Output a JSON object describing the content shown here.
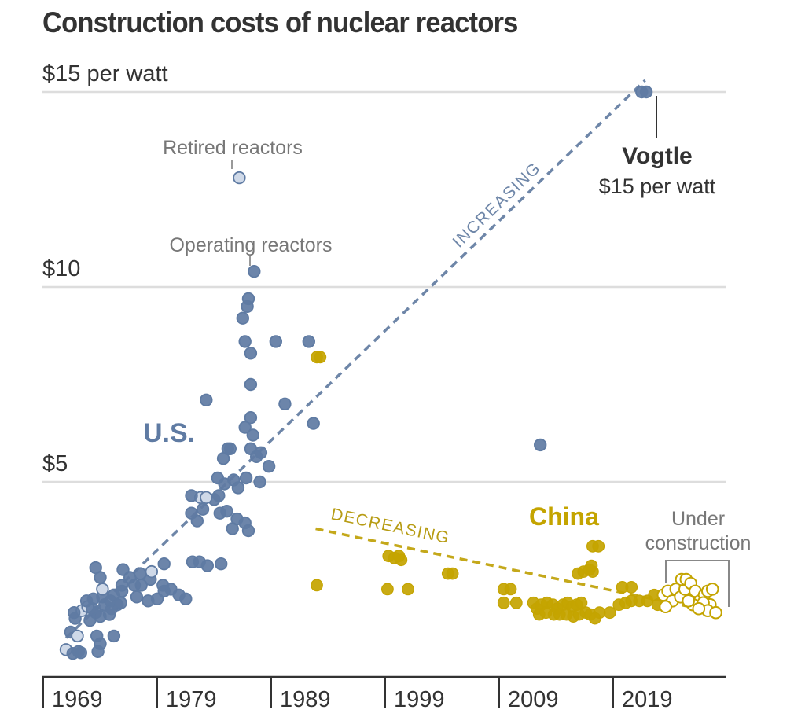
{
  "chart_data": {
    "type": "scatter",
    "title": "Construction costs of nuclear reactors",
    "xlabel": "",
    "ylabel": "$ per watt",
    "xlim": [
      1969,
      2029
    ],
    "ylim": [
      0,
      15
    ],
    "grid": true,
    "x_ticks": [
      "1969",
      "1979",
      "1989",
      "1999",
      "2009",
      "2019"
    ],
    "x_tick_values": [
      1969,
      1979,
      1989,
      1999,
      2009,
      2019
    ],
    "y_ticks": [
      {
        "value": 15,
        "label": "$15 per watt"
      },
      {
        "value": 10,
        "label": "$10"
      },
      {
        "value": 5,
        "label": "$5"
      }
    ],
    "colors": {
      "us": "#5f7ba3",
      "us_retired_fill": "#cfd9e8",
      "china": "#c4a400",
      "china_uc_fill": "#ffffff",
      "trend_us": "#6e86a8",
      "trend_china": "#c4a81a",
      "grid": "#dddddd",
      "text": "#333333",
      "annotation": "#777777"
    },
    "series": [
      {
        "name": "U.S.",
        "status_legend": {
          "op": "Operating reactors",
          "ret": "Retired reactors"
        },
        "points": [
          [
            1971.0,
            0.7,
            "ret"
          ],
          [
            1971.6,
            0.6,
            "op"
          ],
          [
            1972.1,
            0.65,
            "op"
          ],
          [
            1972.3,
            0.62,
            "op"
          ],
          [
            1973.8,
            0.65,
            "op"
          ],
          [
            1974.0,
            0.85,
            "op"
          ],
          [
            1971.4,
            1.15,
            "op"
          ],
          [
            1972.0,
            1.05,
            "ret"
          ],
          [
            1973.7,
            1.05,
            "op"
          ],
          [
            1975.2,
            1.05,
            "op"
          ],
          [
            1971.8,
            1.5,
            "op"
          ],
          [
            1972.4,
            1.7,
            "ret"
          ],
          [
            1973.1,
            1.45,
            "op"
          ],
          [
            1973.6,
            1.65,
            "op"
          ],
          [
            1974.0,
            1.55,
            "op"
          ],
          [
            1974.8,
            1.6,
            "op"
          ],
          [
            1971.7,
            1.65,
            "op"
          ],
          [
            1972.9,
            1.8,
            "ret"
          ],
          [
            1973.3,
            1.75,
            "op"
          ],
          [
            1974.4,
            1.85,
            "op"
          ],
          [
            1975.0,
            1.75,
            "op"
          ],
          [
            1975.5,
            1.85,
            "op"
          ],
          [
            1972.8,
            1.95,
            "op"
          ],
          [
            1973.4,
            2.0,
            "op"
          ],
          [
            1974.2,
            2.05,
            "op"
          ],
          [
            1974.9,
            1.95,
            "op"
          ],
          [
            1975.8,
            1.9,
            "op"
          ],
          [
            1974.2,
            2.25,
            "ret"
          ],
          [
            1975.2,
            2.1,
            "op"
          ],
          [
            1975.9,
            2.2,
            "op"
          ],
          [
            1977.2,
            2.05,
            "op"
          ],
          [
            1978.2,
            1.95,
            "op"
          ],
          [
            1975.9,
            2.35,
            "op"
          ],
          [
            1977.0,
            2.35,
            "op"
          ],
          [
            1979.0,
            2.0,
            "op"
          ],
          [
            1979.6,
            2.2,
            "op"
          ],
          [
            1980.2,
            2.25,
            "op"
          ],
          [
            1976.6,
            2.55,
            "op"
          ],
          [
            1977.6,
            2.35,
            "op"
          ],
          [
            1978.4,
            2.5,
            "op"
          ],
          [
            1979.5,
            2.35,
            "op"
          ],
          [
            1980.9,
            2.1,
            "op"
          ],
          [
            1981.5,
            2.0,
            "op"
          ],
          [
            1976.0,
            2.75,
            "op"
          ],
          [
            1977.5,
            2.65,
            "op"
          ],
          [
            1978.5,
            2.7,
            "ret"
          ],
          [
            1979.6,
            2.9,
            "op"
          ],
          [
            1982.1,
            2.95,
            "op"
          ],
          [
            1982.7,
            2.95,
            "op"
          ],
          [
            1983.4,
            2.85,
            "op"
          ],
          [
            1984.6,
            2.9,
            "op"
          ],
          [
            1973.6,
            2.8,
            "op"
          ],
          [
            1974.0,
            2.55,
            "op"
          ],
          [
            1982.5,
            4.0,
            "op"
          ],
          [
            1982.0,
            4.2,
            "op"
          ],
          [
            1983.0,
            4.3,
            "op"
          ],
          [
            1984.5,
            4.2,
            "op"
          ],
          [
            1985.6,
            3.8,
            "op"
          ],
          [
            1986.0,
            4.05,
            "op"
          ],
          [
            1986.7,
            3.95,
            "op"
          ],
          [
            1987.0,
            3.75,
            "op"
          ],
          [
            1984.0,
            4.55,
            "op"
          ],
          [
            1984.4,
            4.65,
            "op"
          ],
          [
            1982.8,
            4.6,
            "ret"
          ],
          [
            1983.3,
            4.6,
            "ret"
          ],
          [
            1982.0,
            4.65,
            "op"
          ],
          [
            1985.1,
            4.25,
            "op"
          ],
          [
            1984.3,
            5.1,
            "op"
          ],
          [
            1984.9,
            4.95,
            "op"
          ],
          [
            1985.7,
            5.05,
            "op"
          ],
          [
            1986.1,
            4.85,
            "op"
          ],
          [
            1984.8,
            5.6,
            "op"
          ],
          [
            1985.2,
            5.85,
            "op"
          ],
          [
            1985.4,
            5.85,
            "op"
          ],
          [
            1986.8,
            5.1,
            "op"
          ],
          [
            1988.0,
            5.0,
            "op"
          ],
          [
            1987.2,
            5.85,
            "op"
          ],
          [
            1987.7,
            5.65,
            "op"
          ],
          [
            1988.1,
            5.75,
            "op"
          ],
          [
            1988.8,
            5.4,
            "op"
          ],
          [
            1986.7,
            6.4,
            "op"
          ],
          [
            1987.2,
            6.65,
            "op"
          ],
          [
            1987.4,
            6.2,
            "op"
          ],
          [
            1983.3,
            7.1,
            "op"
          ],
          [
            1990.2,
            7.0,
            "op"
          ],
          [
            1992.7,
            6.5,
            "op"
          ],
          [
            1987.2,
            7.5,
            "op"
          ],
          [
            1986.7,
            8.6,
            "op"
          ],
          [
            1987.2,
            8.3,
            "op"
          ],
          [
            1986.5,
            9.2,
            "op"
          ],
          [
            1986.9,
            9.5,
            "op"
          ],
          [
            1987.0,
            9.7,
            "op"
          ],
          [
            1987.5,
            10.4,
            "op"
          ],
          [
            1989.4,
            8.6,
            "op"
          ],
          [
            1992.3,
            8.6,
            "op"
          ],
          [
            2012.6,
            5.95,
            "op"
          ],
          [
            1986.2,
            12.8,
            "ret"
          ],
          [
            2021.5,
            15.0,
            "op"
          ],
          [
            2021.9,
            15.0,
            "op"
          ]
        ]
      },
      {
        "name": "China",
        "status_legend": {
          "op": "Operating reactors",
          "uc": "Under construction"
        },
        "points": [
          [
            1993.0,
            8.2,
            "op"
          ],
          [
            1993.3,
            8.2,
            "op"
          ],
          [
            1993.0,
            2.35,
            "op"
          ],
          [
            1999.3,
            3.1,
            "op"
          ],
          [
            1999.8,
            3.05,
            "op"
          ],
          [
            2000.4,
            3.0,
            "op"
          ],
          [
            2000.2,
            3.1,
            "op"
          ],
          [
            2001.0,
            2.25,
            "op"
          ],
          [
            1999.2,
            2.25,
            "op"
          ],
          [
            2004.5,
            2.65,
            "op"
          ],
          [
            2004.9,
            2.65,
            "op"
          ],
          [
            2009.4,
            2.25,
            "op"
          ],
          [
            2010.0,
            2.25,
            "op"
          ],
          [
            2009.4,
            1.9,
            "op"
          ],
          [
            2010.5,
            1.9,
            "op"
          ],
          [
            2012.0,
            1.9,
            "op"
          ],
          [
            2012.3,
            1.75,
            "op"
          ],
          [
            2012.7,
            1.85,
            "op"
          ],
          [
            2013.2,
            1.9,
            "op"
          ],
          [
            2013.7,
            1.85,
            "op"
          ],
          [
            2014.1,
            1.75,
            "op"
          ],
          [
            2014.6,
            1.85,
            "op"
          ],
          [
            2015.0,
            1.9,
            "op"
          ],
          [
            2015.4,
            1.8,
            "op"
          ],
          [
            2015.8,
            1.85,
            "op"
          ],
          [
            2016.2,
            1.9,
            "op"
          ],
          [
            2012.5,
            1.6,
            "op"
          ],
          [
            2013.1,
            1.65,
            "op"
          ],
          [
            2013.8,
            1.6,
            "op"
          ],
          [
            2014.3,
            1.6,
            "op"
          ],
          [
            2014.9,
            1.6,
            "op"
          ],
          [
            2015.5,
            1.55,
            "op"
          ],
          [
            2016.0,
            1.6,
            "op"
          ],
          [
            2016.6,
            1.65,
            "op"
          ],
          [
            2017.0,
            1.6,
            "op"
          ],
          [
            2017.8,
            1.65,
            "op"
          ],
          [
            2018.7,
            1.65,
            "op"
          ],
          [
            2017.4,
            1.5,
            "op"
          ],
          [
            2015.9,
            2.65,
            "op"
          ],
          [
            2016.4,
            2.7,
            "op"
          ],
          [
            2016.9,
            2.75,
            "op"
          ],
          [
            2017.2,
            2.7,
            "op"
          ],
          [
            2017.1,
            2.85,
            "op"
          ],
          [
            2017.2,
            3.35,
            "op"
          ],
          [
            2017.7,
            3.35,
            "op"
          ],
          [
            2019.8,
            2.3,
            "op"
          ],
          [
            2020.6,
            2.3,
            "op"
          ],
          [
            2019.5,
            1.85,
            "op"
          ],
          [
            2020.1,
            1.9,
            "op"
          ],
          [
            2020.6,
            1.95,
            "op"
          ],
          [
            2021.3,
            1.95,
            "op"
          ],
          [
            2022.0,
            1.95,
            "op"
          ],
          [
            2022.6,
            2.1,
            "op"
          ],
          [
            2022.9,
            1.85,
            "op"
          ],
          [
            2023.4,
            2.1,
            "uc"
          ],
          [
            2023.8,
            2.2,
            "uc"
          ],
          [
            2024.2,
            1.95,
            "uc"
          ],
          [
            2024.5,
            2.25,
            "uc"
          ],
          [
            2024.9,
            2.05,
            "uc"
          ],
          [
            2025.3,
            2.25,
            "uc"
          ],
          [
            2025.0,
            2.5,
            "uc"
          ],
          [
            2025.4,
            2.5,
            "uc"
          ],
          [
            2025.8,
            2.4,
            "uc"
          ],
          [
            2026.2,
            2.2,
            "uc"
          ],
          [
            2026.6,
            1.95,
            "uc"
          ],
          [
            2027.0,
            2.1,
            "uc"
          ],
          [
            2027.3,
            2.2,
            "uc"
          ],
          [
            2027.5,
            1.85,
            "uc"
          ],
          [
            2026.0,
            1.85,
            "uc"
          ],
          [
            2025.6,
            1.95,
            "uc"
          ],
          [
            2023.6,
            1.8,
            "uc"
          ],
          [
            2026.9,
            1.9,
            "uc"
          ],
          [
            2027.3,
            1.7,
            "uc"
          ],
          [
            2026.5,
            1.75,
            "uc"
          ],
          [
            2028.0,
            1.65,
            "uc"
          ],
          [
            2027.7,
            2.25,
            "uc"
          ]
        ]
      }
    ],
    "trend_lines": [
      {
        "name": "increasing",
        "label": "INCREASING",
        "from": [
          1971.0,
          1.0
        ],
        "to": [
          2021.8,
          15.3
        ]
      },
      {
        "name": "decreasing",
        "label": "DECREASING",
        "from": [
          1992.9,
          3.8
        ],
        "to": [
          2028.2,
          1.65
        ]
      }
    ],
    "annotations": {
      "retired_reactors": "Retired reactors",
      "operating_reactors": "Operating reactors",
      "us_label": "U.S.",
      "china_label": "China",
      "vogtle_name": "Vogtle",
      "vogtle_value": "$15 per watt",
      "under_construction_line1": "Under",
      "under_construction_line2": "construction"
    }
  }
}
